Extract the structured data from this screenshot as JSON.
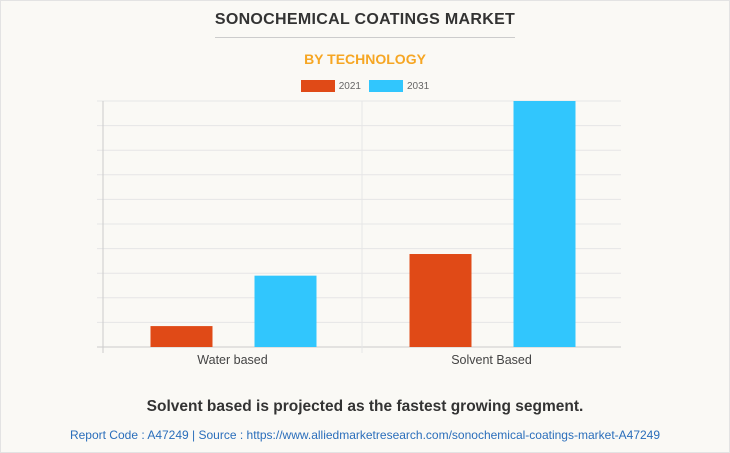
{
  "title": "SONOCHEMICAL COATINGS MARKET",
  "subtitle": "BY TECHNOLOGY",
  "chart_data": {
    "type": "bar",
    "title": "SONOCHEMICAL COATINGS MARKET",
    "subtitle": "BY TECHNOLOGY",
    "categories": [
      "Water based",
      "Solvent Based"
    ],
    "series": [
      {
        "name": "2021",
        "color": "#e04a17",
        "values": [
          0.85,
          3.78
        ]
      },
      {
        "name": "2031",
        "color": "#31c6fd",
        "values": [
          2.9,
          10.0
        ]
      }
    ],
    "xlabel": "",
    "ylabel": "",
    "ylim": [
      0,
      10
    ],
    "grid": true,
    "legend": "top-center",
    "y_axis_labels_shown": false
  },
  "footer": {
    "note": "Solvent based is projected as the fastest growing segment.",
    "source": "Report Code : A47249  |  Source : https://www.alliedmarketresearch.com/sonochemical-coatings-market-A47249"
  }
}
